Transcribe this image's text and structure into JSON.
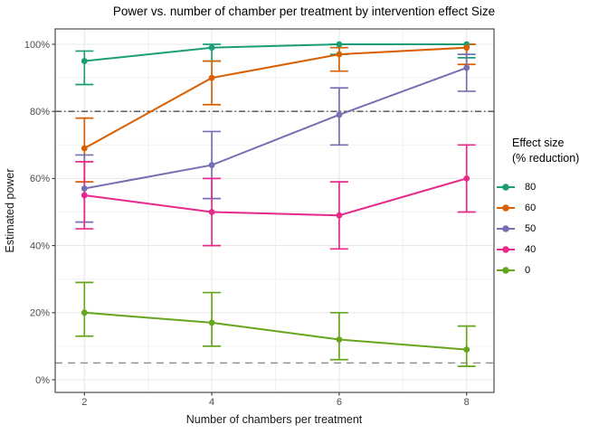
{
  "legend": {
    "title_lines": [
      "Effect size",
      "(% reduction)"
    ]
  },
  "chart_data": {
    "type": "line",
    "title": "Power vs. number of chamber per treatment by intervention effect Size",
    "xlabel": "Number of chambers per treatment",
    "ylabel": "Estimated power",
    "legend_title": "Effect size (% reduction)",
    "legend_position": "right",
    "grid": true,
    "x": [
      2,
      4,
      6,
      8
    ],
    "x_tick_labels": [
      "2",
      "4",
      "6",
      "8"
    ],
    "x_minor_ticks": [
      3,
      5,
      7
    ],
    "y_ticks": [
      0,
      20,
      40,
      60,
      80,
      100
    ],
    "y_tick_labels": [
      "0%",
      "20%",
      "40%",
      "60%",
      "80%",
      "100%"
    ],
    "y_minor_ticks": [
      10,
      30,
      50,
      70,
      90
    ],
    "ylim": [
      -4,
      104
    ],
    "xlim": [
      1.55,
      8.45
    ],
    "series": [
      {
        "name": "80",
        "color": "#1B9E77",
        "values": [
          95,
          99,
          100,
          100
        ],
        "err_low": [
          88,
          95,
          97,
          96
        ],
        "err_high": [
          98,
          100,
          100,
          100
        ]
      },
      {
        "name": "60",
        "color": "#D95F02",
        "values": [
          69,
          90,
          97,
          99
        ],
        "err_low": [
          59,
          82,
          92,
          94
        ],
        "err_high": [
          78,
          95,
          99,
          100
        ]
      },
      {
        "name": "50",
        "color": "#7570B3",
        "values": [
          57,
          64,
          79,
          93
        ],
        "err_low": [
          47,
          54,
          70,
          86
        ],
        "err_high": [
          67,
          74,
          87,
          97
        ]
      },
      {
        "name": "40",
        "color": "#E7298A",
        "values": [
          55,
          50,
          49,
          60
        ],
        "err_low": [
          45,
          40,
          39,
          50
        ],
        "err_high": [
          65,
          60,
          59,
          70
        ]
      },
      {
        "name": "0",
        "color": "#66A61E",
        "values": [
          20,
          17,
          12,
          9
        ],
        "err_low": [
          13,
          10,
          6,
          4
        ],
        "err_high": [
          29,
          26,
          20,
          16
        ]
      }
    ],
    "reference_lines": [
      {
        "y": 80,
        "style": "dashdot",
        "color": "#4d4d4d"
      },
      {
        "y": 5,
        "style": "dashed",
        "color": "#8c8c8c"
      }
    ]
  }
}
